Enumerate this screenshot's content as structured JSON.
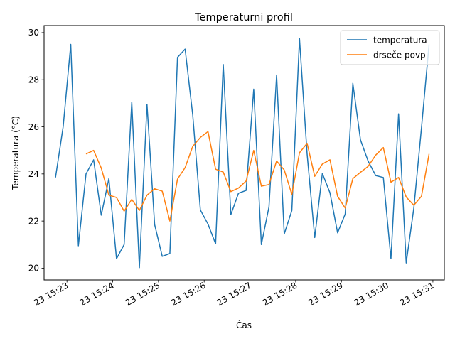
{
  "chart_data": {
    "type": "line",
    "title": "Temperaturni profil",
    "xlabel": "Čas",
    "ylabel": "Temperatura (°C)",
    "x_start": "15:22:45",
    "x_step_seconds": 10,
    "x_tick_values": [
      "15:23",
      "15:24",
      "15:25",
      "15:26",
      "15:27",
      "15:28",
      "15:29",
      "15:30",
      "15:31"
    ],
    "x_tick_labels": [
      "23 15:23",
      "23 15:24",
      "23 15:25",
      "23 15:26",
      "23 15:27",
      "23 15:28",
      "23 15:29",
      "23 15:30",
      "23 15:31"
    ],
    "xlim": [
      "15:22:30",
      "15:31:15"
    ],
    "ylim": [
      19.5,
      30.3
    ],
    "yticks": [
      20,
      22,
      24,
      26,
      28,
      30
    ],
    "legend_position": "upper right",
    "grid": false,
    "series": [
      {
        "name": "temperatura",
        "color": "#1f77b4",
        "values": [
          23.85,
          26.0,
          29.5,
          20.95,
          24.0,
          24.6,
          22.25,
          23.8,
          20.4,
          21.0,
          27.05,
          20.02,
          26.95,
          21.85,
          20.5,
          20.62,
          28.95,
          29.3,
          26.5,
          22.47,
          21.87,
          21.03,
          28.65,
          22.27,
          23.18,
          23.3,
          27.6,
          21.0,
          22.6,
          28.2,
          21.45,
          22.45,
          29.75,
          24.85,
          21.3,
          24.02,
          23.2,
          21.5,
          22.3,
          27.85,
          25.45,
          24.55,
          23.93,
          23.85,
          20.4,
          26.55,
          20.22,
          22.55,
          25.95,
          29.5
        ]
      },
      {
        "name": "drseče povp",
        "color": "#ff7f0e",
        "values": [
          null,
          null,
          null,
          null,
          24.85,
          25.0,
          24.25,
          23.1,
          23.0,
          22.42,
          22.92,
          22.45,
          23.1,
          23.37,
          23.27,
          22.0,
          23.78,
          24.27,
          25.17,
          25.55,
          25.8,
          24.2,
          24.08,
          23.25,
          23.4,
          23.7,
          25.0,
          23.48,
          23.55,
          24.55,
          24.17,
          23.13,
          24.9,
          25.3,
          23.9,
          24.42,
          24.6,
          23.05,
          22.55,
          23.8,
          24.07,
          24.32,
          24.8,
          25.12,
          23.65,
          23.85,
          23.02,
          22.67,
          23.05,
          24.85
        ]
      }
    ]
  }
}
